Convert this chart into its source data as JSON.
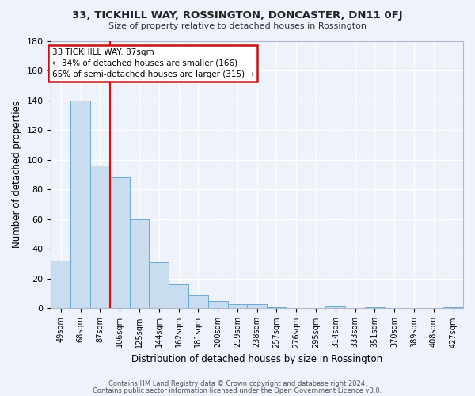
{
  "title": "33, TICKHILL WAY, ROSSINGTON, DONCASTER, DN11 0FJ",
  "subtitle": "Size of property relative to detached houses in Rossington",
  "xlabel": "Distribution of detached houses by size in Rossington",
  "ylabel": "Number of detached properties",
  "bar_values": [
    32,
    140,
    96,
    88,
    60,
    31,
    16,
    9,
    5,
    3,
    3,
    1,
    0,
    0,
    2,
    0,
    1,
    0,
    0,
    0,
    1
  ],
  "bin_labels": [
    "49sqm",
    "68sqm",
    "87sqm",
    "106sqm",
    "125sqm",
    "144sqm",
    "162sqm",
    "181sqm",
    "200sqm",
    "219sqm",
    "238sqm",
    "257sqm",
    "276sqm",
    "295sqm",
    "314sqm",
    "333sqm",
    "351sqm",
    "370sqm",
    "389sqm",
    "408sqm",
    "427sqm"
  ],
  "bar_color": "#c9ddf0",
  "bar_edge_color": "#6aaad4",
  "red_line_bin_index": 2,
  "ylim": [
    0,
    180
  ],
  "yticks": [
    0,
    20,
    40,
    60,
    80,
    100,
    120,
    140,
    160,
    180
  ],
  "annotation_title": "33 TICKHILL WAY: 87sqm",
  "annotation_line1": "← 34% of detached houses are smaller (166)",
  "annotation_line2": "65% of semi-detached houses are larger (315) →",
  "footer1": "Contains HM Land Registry data © Crown copyright and database right 2024.",
  "footer2": "Contains public sector information licensed under the Open Government Licence v3.0.",
  "background_color": "#eef2fb",
  "grid_color": "#ffffff",
  "spine_color": "#b0b8cc"
}
